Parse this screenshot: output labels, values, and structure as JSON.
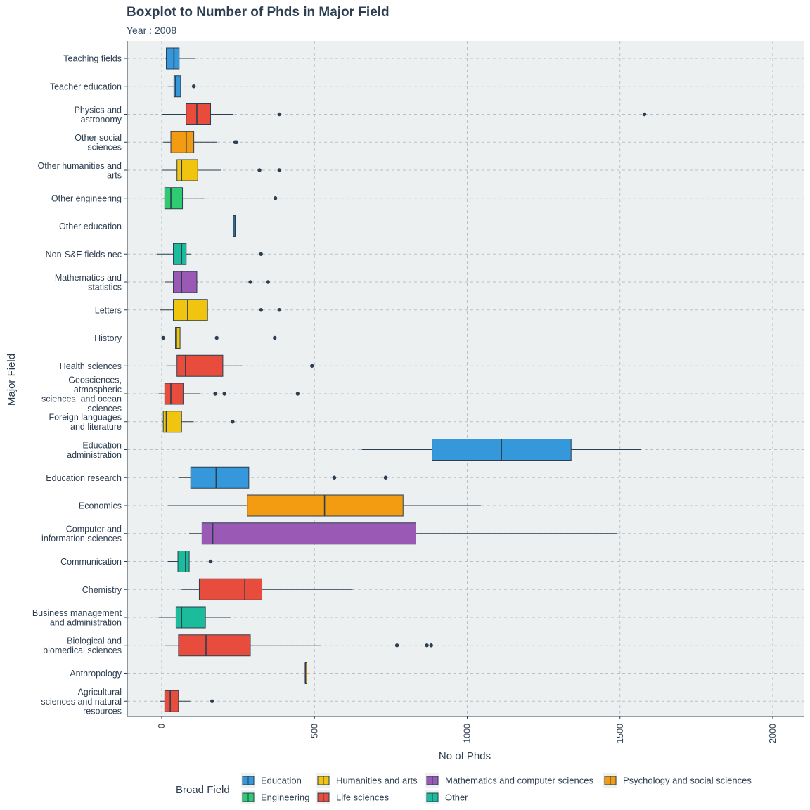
{
  "chart_data": {
    "type": "boxplot",
    "title": "Boxplot to Number of Phds in Major Field",
    "subtitle": "Year : 2008",
    "xlabel": "No of Phds",
    "ylabel": "Major Field",
    "xlim": [
      -110,
      2110
    ],
    "x_ticks": [
      0,
      500,
      1000,
      1500,
      2000
    ],
    "grid": true,
    "legend": {
      "title": "Broad Field",
      "position": "bottom",
      "items": [
        {
          "name": "Education",
          "color": "#3498db"
        },
        {
          "name": "Engineering",
          "color": "#2ecc71"
        },
        {
          "name": "Humanities and arts",
          "color": "#f1c40f"
        },
        {
          "name": "Life sciences",
          "color": "#e74c3c"
        },
        {
          "name": "Mathematics and computer sciences",
          "color": "#9b59b6"
        },
        {
          "name": "Other",
          "color": "#1abc9c"
        },
        {
          "name": "Psychology and social sciences",
          "color": "#f39c12"
        }
      ]
    },
    "categories": [
      {
        "label": [
          "Teaching fields"
        ],
        "group": "Education",
        "whisker_low": 10,
        "q1": 15,
        "median": 40,
        "q3": 57,
        "whisker_high": 110,
        "outliers": []
      },
      {
        "label": [
          "Teacher education"
        ],
        "group": "Education",
        "whisker_low": 20,
        "q1": 40,
        "median": 45,
        "q3": 62,
        "whisker_high": 62,
        "outliers": [
          105
        ]
      },
      {
        "label": [
          "Physics and",
          "astronomy"
        ],
        "group": "Life sciences",
        "whisker_low": 0,
        "q1": 80,
        "median": 115,
        "q3": 160,
        "whisker_high": 235,
        "outliers": [
          385,
          1580
        ]
      },
      {
        "label": [
          "Other social",
          "sciences"
        ],
        "group": "Psychology and social sciences",
        "whisker_low": 5,
        "q1": 30,
        "median": 80,
        "q3": 105,
        "whisker_high": 180,
        "outliers": [
          240,
          245
        ]
      },
      {
        "label": [
          "Other humanities and",
          "arts"
        ],
        "group": "Humanities and arts",
        "whisker_low": 0,
        "q1": 50,
        "median": 65,
        "q3": 118,
        "whisker_high": 195,
        "outliers": [
          320,
          385
        ]
      },
      {
        "label": [
          "Other engineering"
        ],
        "group": "Engineering",
        "whisker_low": 2,
        "q1": 10,
        "median": 30,
        "q3": 68,
        "whisker_high": 140,
        "outliers": [
          372
        ]
      },
      {
        "label": [
          "Other education"
        ],
        "group": "Education",
        "whisker_low": 235,
        "q1": 235,
        "median": 240,
        "q3": 242,
        "whisker_high": 242,
        "outliers": []
      },
      {
        "label": [
          "Non-S&E fields nec"
        ],
        "group": "Other",
        "whisker_low": -15,
        "q1": 38,
        "median": 65,
        "q3": 80,
        "whisker_high": 95,
        "outliers": [
          325
        ]
      },
      {
        "label": [
          "Mathematics and",
          "statistics"
        ],
        "group": "Mathematics and computer sciences",
        "whisker_low": 10,
        "q1": 38,
        "median": 65,
        "q3": 115,
        "whisker_high": 120,
        "outliers": [
          290,
          348
        ]
      },
      {
        "label": [
          "Letters"
        ],
        "group": "Humanities and arts",
        "whisker_low": -5,
        "q1": 38,
        "median": 85,
        "q3": 150,
        "whisker_high": 150,
        "outliers": [
          325,
          385
        ]
      },
      {
        "label": [
          "History"
        ],
        "group": "Humanities and arts",
        "whisker_low": 35,
        "q1": 45,
        "median": 48,
        "q3": 60,
        "whisker_high": 60,
        "outliers": [
          5,
          180,
          370
        ]
      },
      {
        "label": [
          "Health sciences"
        ],
        "group": "Life sciences",
        "whisker_low": 15,
        "q1": 50,
        "median": 78,
        "q3": 200,
        "whisker_high": 263,
        "outliers": [
          492
        ]
      },
      {
        "label": [
          "Geosciences,",
          "atmospheric",
          "sciences, and ocean",
          "sciences"
        ],
        "group": "Life sciences",
        "whisker_low": -10,
        "q1": 10,
        "median": 30,
        "q3": 70,
        "whisker_high": 125,
        "outliers": [
          175,
          205,
          445
        ]
      },
      {
        "label": [
          "Foreign languages",
          "and literature"
        ],
        "group": "Humanities and arts",
        "whisker_low": 0,
        "q1": 5,
        "median": 15,
        "q3": 65,
        "whisker_high": 105,
        "outliers": [
          232
        ]
      },
      {
        "label": [
          "Education",
          "administration"
        ],
        "group": "Education",
        "whisker_low": 655,
        "q1": 885,
        "median": 1112,
        "q3": 1340,
        "whisker_high": 1568,
        "outliers": []
      },
      {
        "label": [
          "Education research"
        ],
        "group": "Education",
        "whisker_low": 55,
        "q1": 95,
        "median": 178,
        "q3": 285,
        "whisker_high": 285,
        "outliers": [
          565,
          733
        ]
      },
      {
        "label": [
          "Economics"
        ],
        "group": "Psychology and social sciences",
        "whisker_low": 20,
        "q1": 280,
        "median": 533,
        "q3": 790,
        "whisker_high": 1045,
        "outliers": []
      },
      {
        "label": [
          "Computer and",
          "information sciences"
        ],
        "group": "Mathematics and computer sciences",
        "whisker_low": 90,
        "q1": 132,
        "median": 167,
        "q3": 832,
        "whisker_high": 1490,
        "outliers": []
      },
      {
        "label": [
          "Communication"
        ],
        "group": "Other",
        "whisker_low": 20,
        "q1": 53,
        "median": 78,
        "q3": 90,
        "whisker_high": 90,
        "outliers": [
          160
        ]
      },
      {
        "label": [
          "Chemistry"
        ],
        "group": "Life sciences",
        "whisker_low": 65,
        "q1": 123,
        "median": 272,
        "q3": 328,
        "whisker_high": 625,
        "outliers": []
      },
      {
        "label": [
          "Business management",
          "and administration"
        ],
        "group": "Other",
        "whisker_low": -10,
        "q1": 47,
        "median": 65,
        "q3": 143,
        "whisker_high": 225,
        "outliers": []
      },
      {
        "label": [
          "Biological and",
          "biomedical sciences"
        ],
        "group": "Life sciences",
        "whisker_low": 10,
        "q1": 55,
        "median": 145,
        "q3": 290,
        "whisker_high": 520,
        "outliers": [
          770,
          868,
          882
        ]
      },
      {
        "label": [
          "Anthropology"
        ],
        "group": "Psychology and social sciences",
        "whisker_low": 470,
        "q1": 470,
        "median": 470,
        "q3": 470,
        "whisker_high": 470,
        "outliers": []
      },
      {
        "label": [
          "Agricultural",
          "sciences and natural",
          "resources"
        ],
        "group": "Life sciences",
        "whisker_low": -5,
        "q1": 10,
        "median": 28,
        "q3": 55,
        "whisker_high": 93,
        "outliers": [
          165
        ]
      }
    ]
  }
}
